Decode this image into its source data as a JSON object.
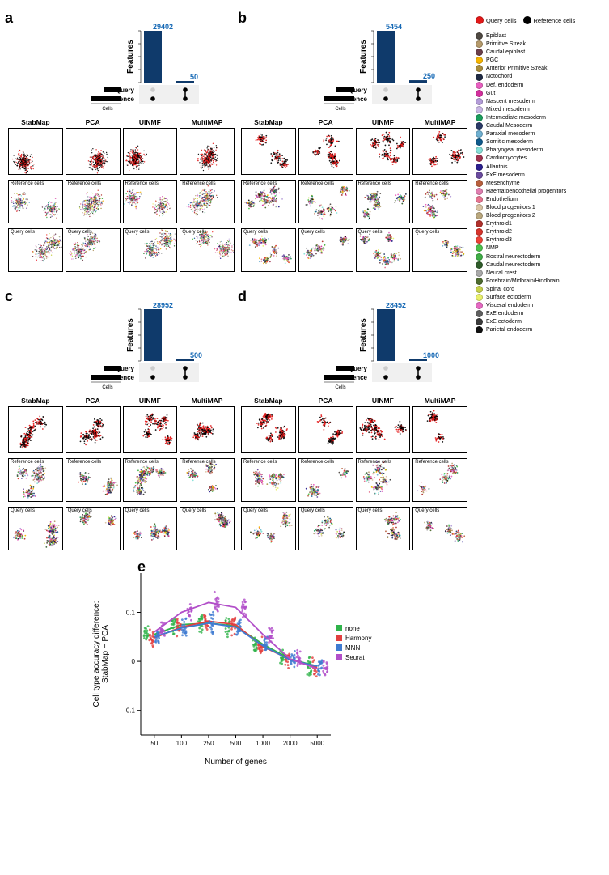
{
  "methods": [
    "StabMap",
    "PCA",
    "UINMF",
    "MultiMAP"
  ],
  "subplot_rows": [
    "",
    "Reference cells",
    "Query cells"
  ],
  "panels": {
    "a": {
      "letter": "a",
      "bar1_value": 29402,
      "bar2_value": 50
    },
    "b": {
      "letter": "b",
      "bar1_value": 5454,
      "bar2_value": 250
    },
    "c": {
      "letter": "c",
      "bar1_value": 28952,
      "bar2_value": 500
    },
    "d": {
      "letter": "d",
      "bar1_value": 28452,
      "bar2_value": 1000
    }
  },
  "upset": {
    "y_axis_label": "Features",
    "left_labels": [
      "Query",
      "Reference"
    ],
    "left_sub": "Cells",
    "bar_color": "#0f3a6b",
    "value_color": "#1669b5",
    "tick_color": "#888888"
  },
  "top_legend": [
    {
      "label": "Query cells",
      "color": "#e31818"
    },
    {
      "label": "Reference cells",
      "color": "#000000"
    }
  ],
  "cell_types": [
    {
      "label": "Epiblast",
      "color": "#4f4942"
    },
    {
      "label": "Primitive Streak",
      "color": "#b59a6b"
    },
    {
      "label": "Caudal epiblast",
      "color": "#6b3f4a"
    },
    {
      "label": "PGC",
      "color": "#f7b500"
    },
    {
      "label": "Anterior Primitive Streak",
      "color": "#a88c3d"
    },
    {
      "label": "Notochord",
      "color": "#1f2a44"
    },
    {
      "label": "Def. endoderm",
      "color": "#e85fc0"
    },
    {
      "label": "Gut",
      "color": "#d22e9c"
    },
    {
      "label": "Nascent mesoderm",
      "color": "#b39cd8"
    },
    {
      "label": "Mixed mesoderm",
      "color": "#c9b7e4"
    },
    {
      "label": "Intermediate mesoderm",
      "color": "#1a9e5c"
    },
    {
      "label": "Caudal Mesoderm",
      "color": "#2b3a67"
    },
    {
      "label": "Paraxial mesoderm",
      "color": "#6fb0d1"
    },
    {
      "label": "Somitic mesoderm",
      "color": "#0f5a8c"
    },
    {
      "label": "Pharyngeal mesoderm",
      "color": "#86e0d8"
    },
    {
      "label": "Cardiomyocytes",
      "color": "#a0334f"
    },
    {
      "label": "Allantois",
      "color": "#2b1f8f"
    },
    {
      "label": "ExE mesoderm",
      "color": "#6a4a9e"
    },
    {
      "label": "Mesenchyme",
      "color": "#b85f3d"
    },
    {
      "label": "Haematoendothelial progenitors",
      "color": "#e07eb0"
    },
    {
      "label": "Endothelium",
      "color": "#e6738f"
    },
    {
      "label": "Blood progenitors 1",
      "color": "#d9c4a3"
    },
    {
      "label": "Blood progenitors 2",
      "color": "#b9a77d"
    },
    {
      "label": "Erythroid1",
      "color": "#b0302b"
    },
    {
      "label": "Erythroid2",
      "color": "#d7342b"
    },
    {
      "label": "Erythroid3",
      "color": "#ef4136"
    },
    {
      "label": "NMP",
      "color": "#4bc24b"
    },
    {
      "label": "Rostral neurectoderm",
      "color": "#3fae46"
    },
    {
      "label": "Caudal neurectoderm",
      "color": "#2f5c2a"
    },
    {
      "label": "Neural crest",
      "color": "#a9a9a9"
    },
    {
      "label": "Forebrain/Midbrain/Hindbrain",
      "color": "#4e6b2f"
    },
    {
      "label": "Spinal cord",
      "color": "#c7d14a"
    },
    {
      "label": "Surface ectoderm",
      "color": "#e9f06a"
    },
    {
      "label": "Visceral endoderm",
      "color": "#e569c2"
    },
    {
      "label": "ExE endoderm",
      "color": "#5f5f5f"
    },
    {
      "label": "ExE ectoderm",
      "color": "#3a3a3a"
    },
    {
      "label": "Parietal endoderm",
      "color": "#111111"
    }
  ],
  "panel_e": {
    "letter": "e",
    "y_label": "Cell type accuracy difference:\nStabMap − PCA",
    "x_label": "Number of genes",
    "x_categories": [
      "50",
      "100",
      "250",
      "500",
      "1000",
      "2000",
      "5000"
    ],
    "y_lim": [
      -0.15,
      0.18
    ],
    "y_ticks": [
      -0.1,
      0,
      0.1
    ],
    "legend_title": "",
    "methods": [
      {
        "label": "none",
        "color": "#2fb34a"
      },
      {
        "label": "Harmony",
        "color": "#e23f3f"
      },
      {
        "label": "MNN",
        "color": "#3f7bd1"
      },
      {
        "label": "Seurat",
        "color": "#b24fc9"
      }
    ],
    "means": {
      "none": [
        0.055,
        0.075,
        0.078,
        0.072,
        0.035,
        0.005,
        -0.01
      ],
      "Harmony": [
        0.048,
        0.07,
        0.082,
        0.075,
        0.03,
        0.004,
        -0.012
      ],
      "MNN": [
        0.05,
        0.068,
        0.078,
        0.07,
        0.032,
        0.003,
        -0.01
      ],
      "Seurat": [
        0.06,
        0.1,
        0.12,
        0.11,
        0.055,
        0.005,
        -0.015
      ]
    },
    "jitter_sd": 0.018,
    "n_points_per_group": 20,
    "background_color": "#ffffff",
    "grid_color": "#dddddd",
    "axis_color": "#000000",
    "font_size_axis": 10,
    "font_size_tick": 8
  },
  "colors": {
    "query_red": "#e31818",
    "reference_black": "#000000",
    "box_border": "#000000"
  }
}
